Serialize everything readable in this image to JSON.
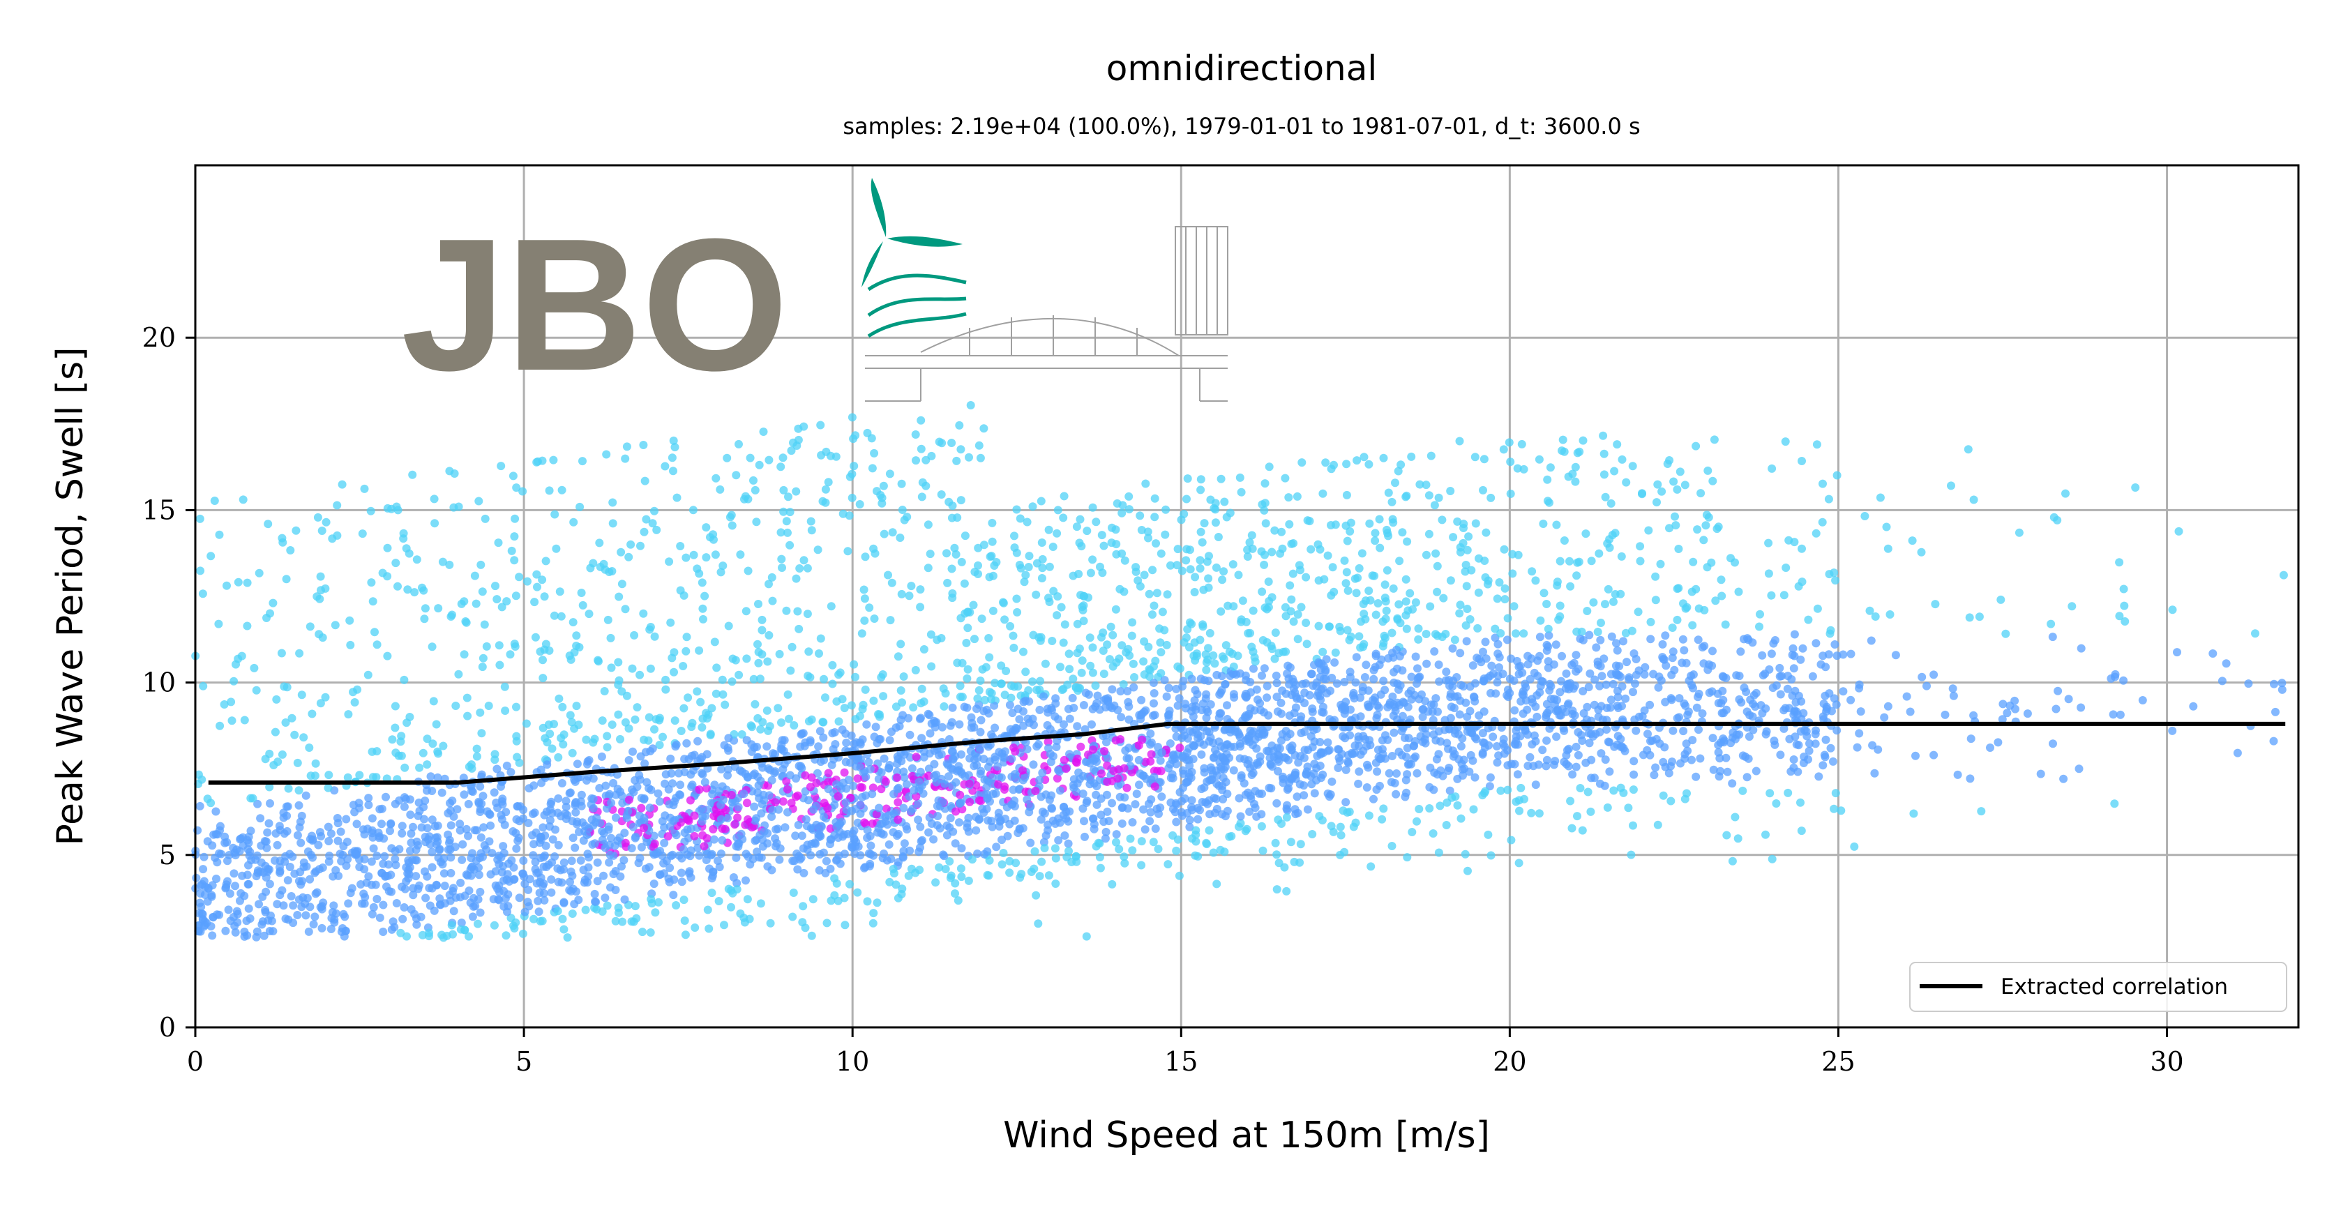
{
  "chart_data": {
    "type": "scatter",
    "title": "omnidirectional",
    "subtitle": "samples: 2.19e+04 (100.0%), 1979-01-01 to 1981-07-01, d_t: 3600.0 s",
    "xlabel": "Wind Speed at 150m [m/s]",
    "ylabel": "Peak Wave Period, Swell [s]",
    "xlim": [
      0,
      32
    ],
    "ylim": [
      0,
      25
    ],
    "x_ticks": [
      0,
      5,
      10,
      15,
      20,
      25,
      30
    ],
    "y_ticks": [
      0,
      5,
      10,
      15,
      20
    ],
    "x_tick_labels": [
      "0",
      "5",
      "10",
      "15",
      "20",
      "25",
      "30"
    ],
    "y_tick_labels": [
      "0",
      "5",
      "10",
      "15",
      "20"
    ],
    "grid": true,
    "legend_position": "bottom-right",
    "legend": [
      "Extracted correlation"
    ],
    "logo_text": "JBO",
    "colors": {
      "points_low_density": "#4fd2f7",
      "points_mid_density": "#5aa0ff",
      "points_high_density": "#e010f0",
      "line": "#000000",
      "grid": "#b0b0b0",
      "logo": "#858073",
      "logo_accent": "#00997f"
    },
    "scatter_description": {
      "samples": 21900,
      "x_range": [
        0,
        32
      ],
      "y_range": [
        2.5,
        21
      ]
    },
    "series": [
      {
        "name": "Extracted correlation",
        "type": "line",
        "x": [
          0.2,
          4.0,
          6.0,
          8.0,
          10.0,
          12.0,
          13.5,
          14.8,
          20.0,
          25.0,
          31.8
        ],
        "y": [
          7.1,
          7.1,
          7.4,
          7.65,
          7.95,
          8.3,
          8.5,
          8.8,
          8.8,
          8.8,
          8.8
        ]
      }
    ]
  }
}
